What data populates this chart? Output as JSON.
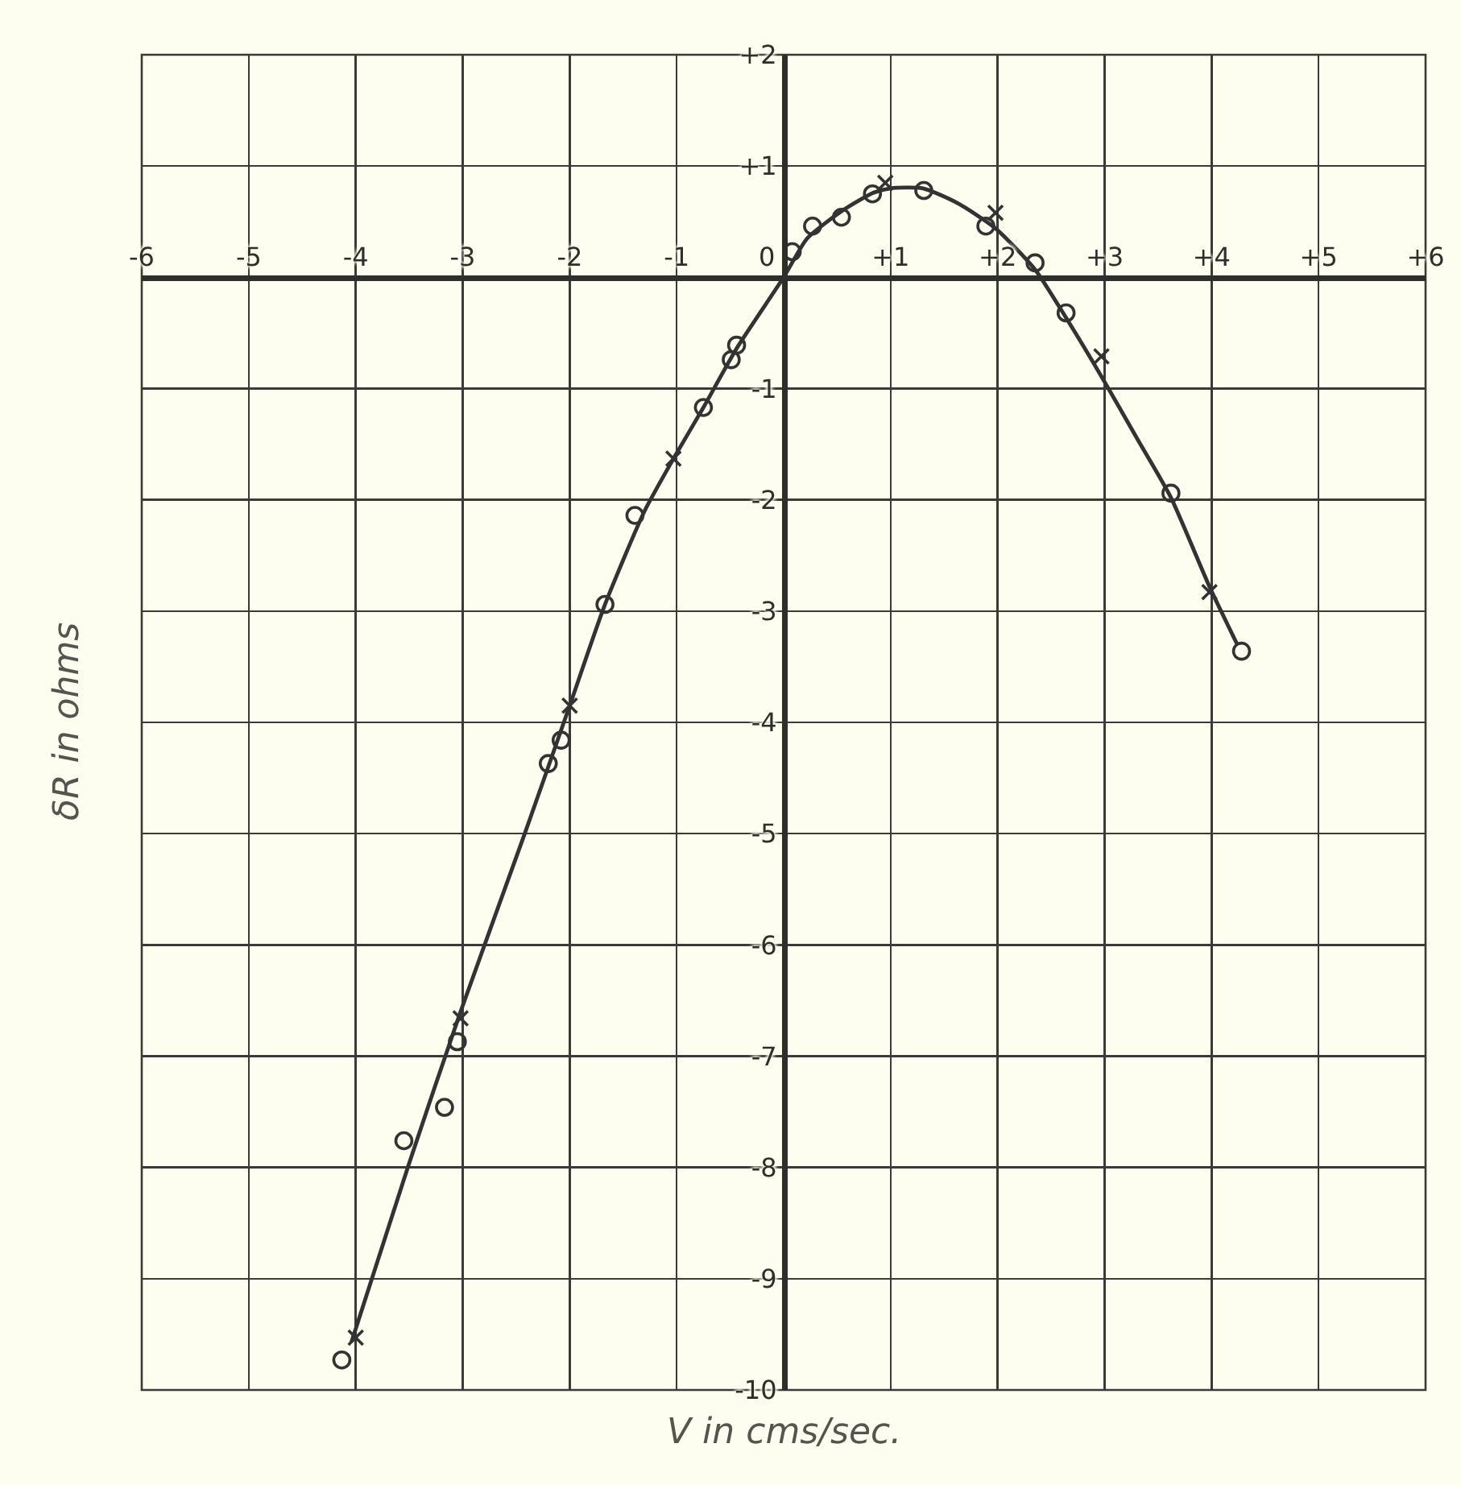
{
  "chart_data": {
    "type": "scatter",
    "xlabel": "V in cms/sec.",
    "ylabel": "δR in ohms",
    "xlim": [
      -6,
      6
    ],
    "ylim": [
      -10,
      2
    ],
    "xticks": [
      -6,
      -5,
      -4,
      -3,
      -2,
      -1,
      0,
      {
        "value": 1,
        "label": "+1"
      },
      {
        "value": 2,
        "label": "+2"
      },
      {
        "value": 3,
        "label": "+3"
      },
      {
        "value": 4,
        "label": "+4"
      },
      {
        "value": 5,
        "label": "+5"
      },
      {
        "value": 6,
        "label": "+6"
      }
    ],
    "yticks": [
      -10,
      -9,
      -8,
      -7,
      -6,
      -5,
      -4,
      -3,
      -2,
      -1,
      {
        "value": 1,
        "label": "+1"
      },
      {
        "value": 2,
        "label": "+2"
      }
    ],
    "grid": true,
    "series": [
      {
        "type": "line",
        "color": "#333333",
        "x": [
          -4.04,
          -3.51,
          -3.02,
          -2.42,
          -2.0,
          -1.67,
          -1.3,
          -1.03,
          -0.75,
          -0.44,
          0,
          0.22,
          0.55,
          0.84,
          1.0,
          1.3,
          1.62,
          1.98,
          2.35,
          2.65,
          3.0,
          3.31,
          3.62,
          3.98,
          4.24
        ],
        "values": [
          -9.57,
          -7.99,
          -6.6,
          -5.0,
          -3.85,
          -2.94,
          -2.1,
          -1.63,
          -1.17,
          -0.64,
          0,
          0.35,
          0.6,
          0.76,
          0.8,
          0.8,
          0.67,
          0.44,
          0.07,
          -0.38,
          -0.94,
          -1.46,
          -1.98,
          -2.78,
          -3.3
        ]
      },
      {
        "type": "scatter",
        "marker": "circle",
        "color": "#333333",
        "x": [
          -4.13,
          -3.55,
          -3.17,
          -3.05,
          -2.2,
          -2.08,
          -1.67,
          -1.39,
          -0.75,
          -0.49,
          -0.44,
          0.08,
          0.27,
          0.54,
          0.83,
          1.31,
          1.89,
          2.35,
          2.64,
          3.62,
          4.28
        ],
        "values": [
          -9.73,
          -7.76,
          -7.46,
          -6.87,
          -4.37,
          -4.16,
          -2.94,
          -2.14,
          -1.17,
          -0.74,
          -0.61,
          0.23,
          0.46,
          0.54,
          0.75,
          0.78,
          0.46,
          0.13,
          -0.32,
          -1.94,
          -3.36
        ]
      },
      {
        "type": "scatter",
        "marker": "cross",
        "color": "#333333",
        "x": [
          -4.0,
          -3.02,
          -2.0,
          -1.03,
          0.95,
          1.98,
          2.97,
          3.98
        ],
        "values": [
          -9.53,
          -6.66,
          -3.85,
          -1.63,
          0.85,
          0.58,
          -0.71,
          -2.83
        ]
      }
    ]
  }
}
